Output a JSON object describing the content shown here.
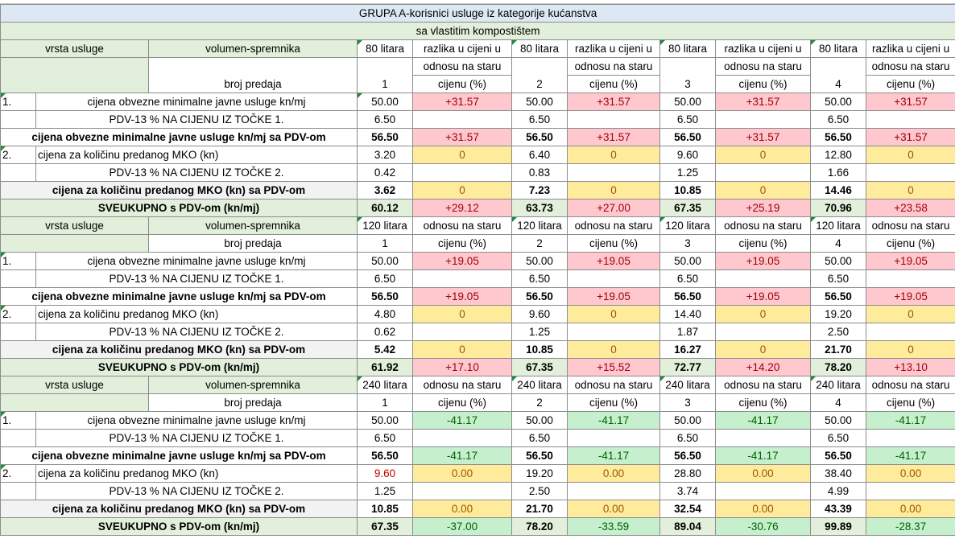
{
  "title": "GRUPA A-korisnici usluge iz kategorije kućanstva",
  "subtitle": "sa vlastitim kompostištem",
  "labels": {
    "vrsta_usluge": "vrsta usluge",
    "volumen": "volumen-spremnika",
    "broj_predaja": "broj predaja",
    "razlika_1": "razlika u cijeni u",
    "razlika_2": "odnosu na staru",
    "razlika_3": "cijenu (%)",
    "row1_num": "1.",
    "row1": "cijena obvezne minimalne javne usluge kn/mj",
    "row_pdv1": "PDV-13 % NA CIJENU IZ TOČKE 1.",
    "row_sum1": "cijena obvezne minimalne javne usluge kn/mj sa PDV-om",
    "row2_num": "2.",
    "row2": "cijena za količinu predanog MKO (kn)",
    "row_pdv2": "PDV-13 % NA CIJENU IZ TOČKE 2.",
    "row_sum2": "cijena za količinu predanog MKO (kn) sa PDV-om",
    "row_total": "SVEUKUPNO s PDV-om (kn/mj)"
  },
  "sections": [
    {
      "volume": "80 litara",
      "counts": [
        "1",
        "2",
        "3",
        "4"
      ],
      "min": [
        "50.00",
        "50.00",
        "50.00",
        "50.00"
      ],
      "min_diff": [
        "+31.57",
        "+31.57",
        "+31.57",
        "+31.57"
      ],
      "pdv1": [
        "6.50",
        "6.50",
        "6.50",
        "6.50"
      ],
      "sum1": [
        "56.50",
        "56.50",
        "56.50",
        "56.50"
      ],
      "sum1_diff": [
        "+31.57",
        "+31.57",
        "+31.57",
        "+31.57"
      ],
      "mko": [
        "3.20",
        "6.40",
        "9.60",
        "12.80"
      ],
      "mko_diff": [
        "0",
        "0",
        "0",
        "0"
      ],
      "pdv2": [
        "0.42",
        "0.83",
        "1.25",
        "1.66"
      ],
      "sum2": [
        "3.62",
        "7.23",
        "10.85",
        "14.46"
      ],
      "sum2_diff": [
        "0",
        "0",
        "0",
        "0"
      ],
      "total": [
        "60.12",
        "63.73",
        "67.35",
        "70.96"
      ],
      "total_diff": [
        "+29.12",
        "+27.00",
        "+25.19",
        "+23.58"
      ]
    },
    {
      "volume": "120 litara",
      "counts": [
        "1",
        "2",
        "3",
        "4"
      ],
      "min": [
        "50.00",
        "50.00",
        "50.00",
        "50.00"
      ],
      "min_diff": [
        "+19.05",
        "+19.05",
        "+19.05",
        "+19.05"
      ],
      "pdv1": [
        "6.50",
        "6.50",
        "6.50",
        "6.50"
      ],
      "sum1": [
        "56.50",
        "56.50",
        "56.50",
        "56.50"
      ],
      "sum1_diff": [
        "+19.05",
        "+19.05",
        "+19.05",
        "+19.05"
      ],
      "mko": [
        "4.80",
        "9.60",
        "14.40",
        "19.20"
      ],
      "mko_diff": [
        "0",
        "0",
        "0",
        "0"
      ],
      "pdv2": [
        "0.62",
        "1.25",
        "1.87",
        "2.50"
      ],
      "sum2": [
        "5.42",
        "10.85",
        "16.27",
        "21.70"
      ],
      "sum2_diff": [
        "0",
        "0",
        "0",
        "0"
      ],
      "total": [
        "61.92",
        "67.35",
        "72.77",
        "78.20"
      ],
      "total_diff": [
        "+17.10",
        "+15.52",
        "+14.20",
        "+13.10"
      ]
    },
    {
      "volume": "240 litara",
      "counts": [
        "1",
        "2",
        "3",
        "4"
      ],
      "min": [
        "50.00",
        "50.00",
        "50.00",
        "50.00"
      ],
      "min_diff": [
        "-41.17",
        "-41.17",
        "-41.17",
        "-41.17"
      ],
      "pdv1": [
        "6.50",
        "6.50",
        "6.50",
        "6.50"
      ],
      "sum1": [
        "56.50",
        "56.50",
        "56.50",
        "56.50"
      ],
      "sum1_diff": [
        "-41.17",
        "-41.17",
        "-41.17",
        "-41.17"
      ],
      "mko": [
        "9.60",
        "19.20",
        "28.80",
        "38.40"
      ],
      "mko_diff": [
        "0.00",
        "0.00",
        "0.00",
        "0.00"
      ],
      "pdv2": [
        "1.25",
        "2.50",
        "3.74",
        "4.99"
      ],
      "sum2": [
        "10.85",
        "21.70",
        "32.54",
        "43.39"
      ],
      "sum2_diff": [
        "0.00",
        "0.00",
        "0.00",
        "0.00"
      ],
      "total": [
        "67.35",
        "78.20",
        "89.04",
        "99.89"
      ],
      "total_diff": [
        "-37.00",
        "-33.59",
        "-30.76",
        "-28.37"
      ]
    }
  ],
  "colors": {
    "header_blue": "#dde8f5",
    "header_green": "#e2efda",
    "increase_bg": "#ffc7ce",
    "increase_text": "#9c0006",
    "neutral_bg": "#ffeb9c",
    "neutral_text": "#9c5700",
    "decrease_bg": "#c6efce",
    "decrease_text": "#006100"
  }
}
